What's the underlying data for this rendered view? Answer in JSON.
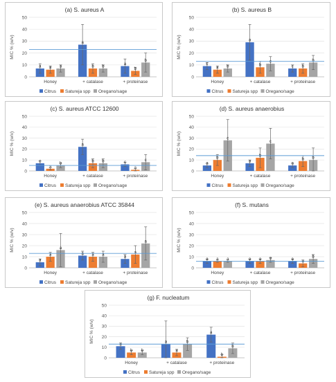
{
  "colors": {
    "citrus": "#4472c4",
    "satureja": "#ed7d31",
    "oregano": "#a5a5a5",
    "refline": "#5b9bd5"
  },
  "chart_data": [
    {
      "type": "bar",
      "title": "(a) S. aureus A",
      "ylabel": "MIC % (w/v)",
      "ylim": [
        0,
        50
      ],
      "yticks": [
        0,
        10,
        20,
        30,
        40,
        50
      ],
      "refline": 23,
      "categories": [
        "Honey",
        "+ catalase",
        "+ proteinase"
      ],
      "series": [
        {
          "name": "Citrus",
          "values": [
            7,
            27,
            9
          ],
          "errors": [
            4,
            17,
            6
          ],
          "letters": [
            "a",
            "a",
            "a"
          ]
        },
        {
          "name": "Satureja spp",
          "values": [
            6,
            7,
            5
          ],
          "errors": [
            3,
            4,
            3
          ],
          "letters": [
            "a",
            "b",
            "b"
          ]
        },
        {
          "name": "Oregano/sage",
          "values": [
            7,
            7,
            12
          ],
          "errors": [
            3,
            3,
            8
          ],
          "letters": [
            "a",
            "b",
            "b"
          ]
        }
      ],
      "legend_position": "bottom"
    },
    {
      "type": "bar",
      "title": "(b) S. aureus B",
      "ylabel": "MIC % (w/v)",
      "ylim": [
        0,
        50
      ],
      "yticks": [
        0,
        10,
        20,
        30,
        40,
        50
      ],
      "refline": 13,
      "categories": [
        "Honey",
        "+ catalase",
        "+ proteinase"
      ],
      "series": [
        {
          "name": "Citrus",
          "values": [
            9,
            29,
            7
          ],
          "errors": [
            3,
            15,
            3
          ],
          "letters": [
            "c",
            "a",
            "c"
          ]
        },
        {
          "name": "Satureja spp",
          "values": [
            6,
            8,
            7
          ],
          "errors": [
            3,
            5,
            4
          ],
          "letters": [
            "a",
            "b",
            "b"
          ]
        },
        {
          "name": "Oregano/sage",
          "values": [
            7,
            11,
            12
          ],
          "errors": [
            3,
            6,
            6
          ],
          "letters": [
            "b",
            "c",
            "b"
          ]
        }
      ],
      "legend_position": "bottom"
    },
    {
      "type": "bar",
      "title": "(c) S. aureus ATCC 12600",
      "ylabel": "MIC % (w/v)",
      "ylim": [
        0,
        50
      ],
      "yticks": [
        0,
        10,
        20,
        30,
        40,
        50
      ],
      "refline": 5,
      "categories": [
        "Honey",
        "+ catalase",
        "+ proteinase"
      ],
      "series": [
        {
          "name": "Citrus",
          "values": [
            7,
            22,
            6
          ],
          "errors": [
            2,
            7,
            2
          ],
          "letters": [
            "c",
            "a",
            "c"
          ]
        },
        {
          "name": "Satureja spp",
          "values": [
            2,
            7,
            1
          ],
          "errors": [
            1,
            4,
            1
          ],
          "letters": [
            "a",
            "b",
            "a"
          ]
        },
        {
          "name": "Oregano/sage",
          "values": [
            5,
            7,
            8
          ],
          "errors": [
            2,
            4,
            7
          ],
          "letters": [
            "b",
            "b",
            "c"
          ]
        }
      ],
      "legend_position": "bottom"
    },
    {
      "type": "bar",
      "title": "(d) S. aureus anaerobius",
      "ylabel": "MIC % (w/v)",
      "ylim": [
        0,
        50
      ],
      "yticks": [
        0,
        10,
        20,
        30,
        40,
        50
      ],
      "refline": 14,
      "categories": [
        "Honey",
        "+ catalase",
        "+ proteinase"
      ],
      "series": [
        {
          "name": "Citrus",
          "values": [
            5,
            7,
            5
          ],
          "errors": [
            2,
            3,
            2
          ],
          "letters": [
            "a",
            "a",
            "a"
          ]
        },
        {
          "name": "Satureja spp",
          "values": [
            10,
            12,
            9
          ],
          "errors": [
            5,
            9,
            5
          ],
          "letters": [
            "b",
            "b",
            "b"
          ]
        },
        {
          "name": "Oregano/sage",
          "values": [
            28,
            25,
            10
          ],
          "errors": [
            19,
            14,
            11
          ],
          "letters": [
            "c",
            "c",
            "b"
          ]
        }
      ],
      "legend_position": "bottom"
    },
    {
      "type": "bar",
      "title": "(e) S. aureus anaerobius ATCC 35844",
      "ylabel": "MIC % (w/v)",
      "ylim": [
        0,
        50
      ],
      "yticks": [
        0,
        10,
        20,
        30,
        40,
        50
      ],
      "refline": 13,
      "categories": [
        "Honey",
        "+ catalase",
        "+ proteinase"
      ],
      "series": [
        {
          "name": "Citrus",
          "values": [
            5,
            11,
            8
          ],
          "errors": [
            3,
            4,
            4
          ],
          "letters": [
            "a",
            "a",
            "a"
          ]
        },
        {
          "name": "Satureja spp",
          "values": [
            10,
            10,
            12
          ],
          "errors": [
            4,
            4,
            8
          ],
          "letters": [
            "a",
            "a",
            "a"
          ]
        },
        {
          "name": "Oregano/sage",
          "values": [
            16,
            10,
            22
          ],
          "errors": [
            15,
            5,
            15
          ],
          "letters": [
            "a",
            "a",
            "a"
          ]
        }
      ],
      "legend_position": "bottom"
    },
    {
      "type": "bar",
      "title": "(f) S. mutans",
      "ylabel": "MIC % (w/v)",
      "ylim": [
        0,
        50
      ],
      "yticks": [
        0,
        10,
        20,
        30,
        40,
        50
      ],
      "refline": 6,
      "categories": [
        "Honey",
        "+ catalase",
        "+ proteinase"
      ],
      "series": [
        {
          "name": "Citrus",
          "values": [
            6,
            6,
            6
          ],
          "errors": [
            2,
            2,
            2
          ],
          "letters": [
            "a",
            "a",
            "a"
          ]
        },
        {
          "name": "Satureja spp",
          "values": [
            6,
            6,
            4
          ],
          "errors": [
            1,
            2,
            3
          ],
          "letters": [
            "a",
            "a",
            "a"
          ]
        },
        {
          "name": "Oregano/sage",
          "values": [
            6,
            7,
            8
          ],
          "errors": [
            1,
            2,
            4
          ],
          "letters": [
            "a",
            "a",
            "b"
          ]
        }
      ],
      "legend_position": "bottom"
    },
    {
      "type": "bar",
      "title": "(g) F. nucleatum",
      "ylabel": "MIC % (w/v)",
      "ylim": [
        0,
        50
      ],
      "yticks": [
        0,
        10,
        20,
        30,
        40,
        50
      ],
      "refline": 13,
      "categories": [
        "Honey",
        "+ catalase",
        "+ proteinase"
      ],
      "series": [
        {
          "name": "Citrus",
          "values": [
            11,
            13,
            22
          ],
          "errors": [
            3,
            22,
            7
          ],
          "letters": [
            "a",
            "a",
            "a"
          ]
        },
        {
          "name": "Satureja spp",
          "values": [
            5,
            5,
            1
          ],
          "errors": [
            2,
            3,
            2
          ],
          "letters": [
            "b",
            "a",
            "b"
          ]
        },
        {
          "name": "Oregano/sage",
          "values": [
            5,
            13,
            9
          ],
          "errors": [
            2,
            6,
            5
          ],
          "letters": [
            "b",
            "b",
            "b"
          ]
        }
      ],
      "legend_position": "bottom"
    }
  ]
}
